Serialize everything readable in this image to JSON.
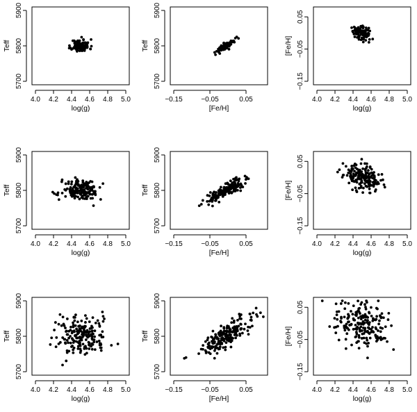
{
  "figure": {
    "description_free": true
  },
  "axes": {
    "logg": {
      "label": "log(g)",
      "range": [
        4.0,
        5.0
      ],
      "ticks": [
        4.0,
        4.2,
        4.4,
        4.6,
        4.8,
        5.0
      ],
      "tick_labels": [
        "4.0",
        "4.2",
        "4.4",
        "4.6",
        "4.8",
        "5.0"
      ]
    },
    "feh": {
      "label": "[Fe/H]",
      "range": [
        -0.15,
        0.1
      ],
      "ticks": [
        -0.15,
        -0.05,
        0.05
      ],
      "tick_labels": [
        "−0.15",
        "−0.05",
        "0.05"
      ]
    },
    "teff": {
      "label": "Teff",
      "range": [
        5700,
        5900
      ],
      "ticks": [
        5700,
        5800,
        5900
      ],
      "tick_labels": [
        "5700",
        "5800",
        "5900"
      ]
    },
    "feh_y": {
      "label": "[Fe/H]",
      "range": [
        -0.15,
        0.07
      ],
      "ticks": [
        -0.15,
        -0.05,
        0.05
      ],
      "tick_labels": [
        "−0.15",
        "−0.05",
        "0.05"
      ]
    }
  },
  "chart_data": [
    {
      "type": "scatter",
      "row": 1,
      "col": 1,
      "x_axis": "logg",
      "y_axis": "teff",
      "xlabel": "log(g)",
      "ylabel": "Teff",
      "xlim": [
        4.0,
        5.0
      ],
      "ylim": [
        5700,
        5900
      ],
      "cluster": {
        "x_mean": 4.5,
        "x_sd": 0.05,
        "y_mean": 5800,
        "y_sd": 9,
        "corr": 0.0,
        "n": 110,
        "seed": 11
      }
    },
    {
      "type": "scatter",
      "row": 1,
      "col": 2,
      "x_axis": "feh",
      "y_axis": "teff",
      "xlabel": "[Fe/H]",
      "ylabel": "Teff",
      "xlim": [
        -0.15,
        0.1
      ],
      "ylim": [
        5700,
        5900
      ],
      "cluster": {
        "x_mean": -0.005,
        "x_sd": 0.012,
        "y_mean": 5800,
        "y_sd": 9,
        "corr": 0.85,
        "n": 110,
        "seed": 12
      }
    },
    {
      "type": "scatter",
      "row": 1,
      "col": 3,
      "x_axis": "logg",
      "y_axis": "feh_y",
      "xlabel": "log(g)",
      "ylabel": "[Fe/H]",
      "xlim": [
        4.0,
        5.0
      ],
      "ylim": [
        -0.15,
        0.07
      ],
      "cluster": {
        "x_mean": 4.5,
        "x_sd": 0.05,
        "y_mean": 0.0,
        "y_sd": 0.011,
        "corr": -0.2,
        "n": 110,
        "seed": 13
      }
    },
    {
      "type": "scatter",
      "row": 2,
      "col": 1,
      "x_axis": "logg",
      "y_axis": "teff",
      "xlabel": "log(g)",
      "ylabel": "Teff",
      "xlim": [
        4.0,
        5.0
      ],
      "ylim": [
        5700,
        5900
      ],
      "cluster": {
        "x_mean": 4.5,
        "x_sd": 0.1,
        "y_mean": 5800,
        "y_sd": 14,
        "corr": 0.0,
        "n": 180,
        "seed": 21
      }
    },
    {
      "type": "scatter",
      "row": 2,
      "col": 2,
      "x_axis": "feh",
      "y_axis": "teff",
      "xlabel": "[Fe/H]",
      "ylabel": "Teff",
      "xlim": [
        -0.15,
        0.1
      ],
      "ylim": [
        5700,
        5900
      ],
      "cluster": {
        "x_mean": -0.005,
        "x_sd": 0.025,
        "y_mean": 5800,
        "y_sd": 16,
        "corr": 0.85,
        "n": 180,
        "seed": 22
      }
    },
    {
      "type": "scatter",
      "row": 2,
      "col": 3,
      "x_axis": "logg",
      "y_axis": "feh_y",
      "xlabel": "log(g)",
      "ylabel": "[Fe/H]",
      "xlim": [
        4.0,
        5.0
      ],
      "ylim": [
        -0.15,
        0.07
      ],
      "cluster": {
        "x_mean": 4.5,
        "x_sd": 0.1,
        "y_mean": 0.0,
        "y_sd": 0.02,
        "corr": -0.4,
        "n": 180,
        "seed": 23
      }
    },
    {
      "type": "scatter",
      "row": 3,
      "col": 1,
      "x_axis": "logg",
      "y_axis": "teff",
      "xlabel": "log(g)",
      "ylabel": "Teff",
      "xlim": [
        4.0,
        5.0
      ],
      "ylim": [
        5700,
        5900
      ],
      "cluster": {
        "x_mean": 4.5,
        "x_sd": 0.15,
        "y_mean": 5800,
        "y_sd": 28,
        "corr": 0.0,
        "n": 200,
        "seed": 31
      }
    },
    {
      "type": "scatter",
      "row": 3,
      "col": 2,
      "x_axis": "feh",
      "y_axis": "teff",
      "xlabel": "[Fe/H]",
      "ylabel": "Teff",
      "xlim": [
        -0.15,
        0.1
      ],
      "ylim": [
        5700,
        5900
      ],
      "cluster": {
        "x_mean": -0.01,
        "x_sd": 0.04,
        "y_mean": 5800,
        "y_sd": 28,
        "corr": 0.8,
        "n": 200,
        "seed": 32
      }
    },
    {
      "type": "scatter",
      "row": 3,
      "col": 3,
      "x_axis": "logg",
      "y_axis": "feh_y",
      "xlabel": "log(g)",
      "ylabel": "[Fe/H]",
      "xlim": [
        4.0,
        5.0
      ],
      "ylim": [
        -0.15,
        0.07
      ],
      "cluster": {
        "x_mean": 4.5,
        "x_sd": 0.15,
        "y_mean": 0.0,
        "y_sd": 0.035,
        "corr": -0.3,
        "n": 200,
        "seed": 33
      }
    }
  ]
}
